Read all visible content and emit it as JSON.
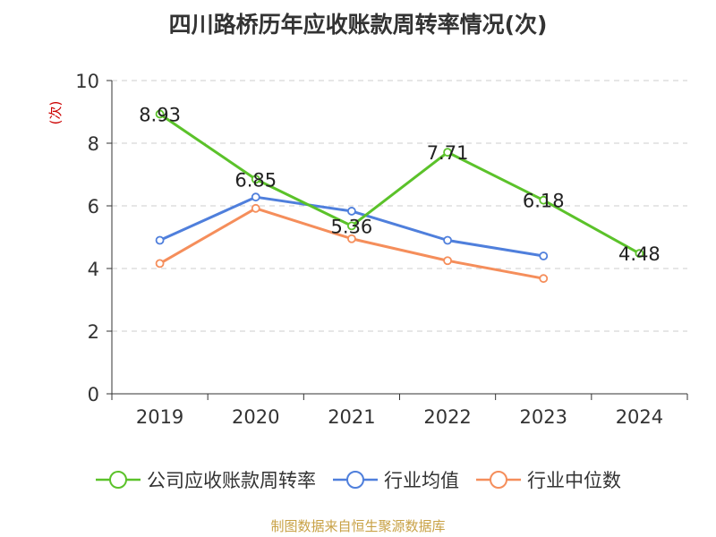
{
  "chart_data": {
    "type": "line",
    "title": "四川路桥历年应收账款周转率情况(次)",
    "ylabel": "(次)",
    "xlabel": "",
    "categories": [
      "2019",
      "2020",
      "2021",
      "2022",
      "2023",
      "2024"
    ],
    "ylim": [
      0,
      10
    ],
    "yticks": [
      0,
      2,
      4,
      6,
      8,
      10
    ],
    "grid": "horizontal-dashed",
    "legend_position": "bottom",
    "series": [
      {
        "name": "公司应收账款周转率",
        "color": "#5bc22a",
        "values": [
          8.93,
          6.85,
          5.36,
          7.71,
          6.18,
          4.48
        ],
        "labels": [
          "8.93",
          "6.85",
          "5.36",
          "7.71",
          "6.18",
          "4.48"
        ]
      },
      {
        "name": "行业均值",
        "color": "#4f7fdc",
        "values": [
          4.9,
          6.28,
          5.83,
          4.9,
          4.4,
          null
        ]
      },
      {
        "name": "行业中位数",
        "color": "#f58e5b",
        "values": [
          4.16,
          5.92,
          4.95,
          4.25,
          3.68,
          null
        ]
      }
    ]
  },
  "source_text": "制图数据来自恒生聚源数据库"
}
